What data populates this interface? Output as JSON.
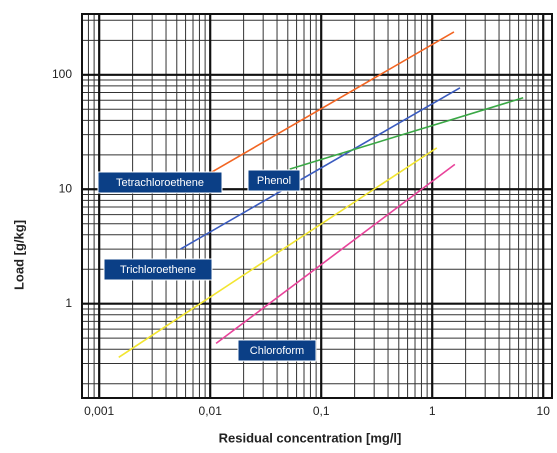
{
  "chart_data": {
    "type": "line",
    "x_label": "Residual concentration [mg/l]",
    "y_label": "Load [g/kg]",
    "log_x": true,
    "log_y": true,
    "grid": true,
    "xlim": [
      0.0007,
      12
    ],
    "ylim": [
      0.15,
      340
    ],
    "xticks": [
      {
        "value": 0.001,
        "label": "0,001"
      },
      {
        "value": 0.01,
        "label": "0,01"
      },
      {
        "value": 0.1,
        "label": "0,1"
      },
      1,
      10
    ],
    "yticks": [
      1,
      10,
      100
    ],
    "series": [
      {
        "name": "Tetrachloroethene",
        "color": "#f26522",
        "x": [
          0.0066,
          1.57
        ],
        "values": [
          11,
          237
        ]
      },
      {
        "name": "Trichloroethene",
        "color": "#3a5bbf",
        "x": [
          0.0054,
          1.78
        ],
        "values": [
          3.0,
          77
        ]
      },
      {
        "name": "Phenol",
        "color": "#3aa845",
        "x": [
          0.052,
          6.6
        ],
        "values": [
          15,
          63
        ]
      },
      {
        "color": "#f2e531",
        "x": [
          0.0015,
          1.1
        ],
        "values": [
          0.34,
          23
        ]
      },
      {
        "name": "Chloroform",
        "color": "#e8439a",
        "x": [
          0.0113,
          1.6
        ],
        "values": [
          0.45,
          16.5
        ]
      }
    ]
  }
}
